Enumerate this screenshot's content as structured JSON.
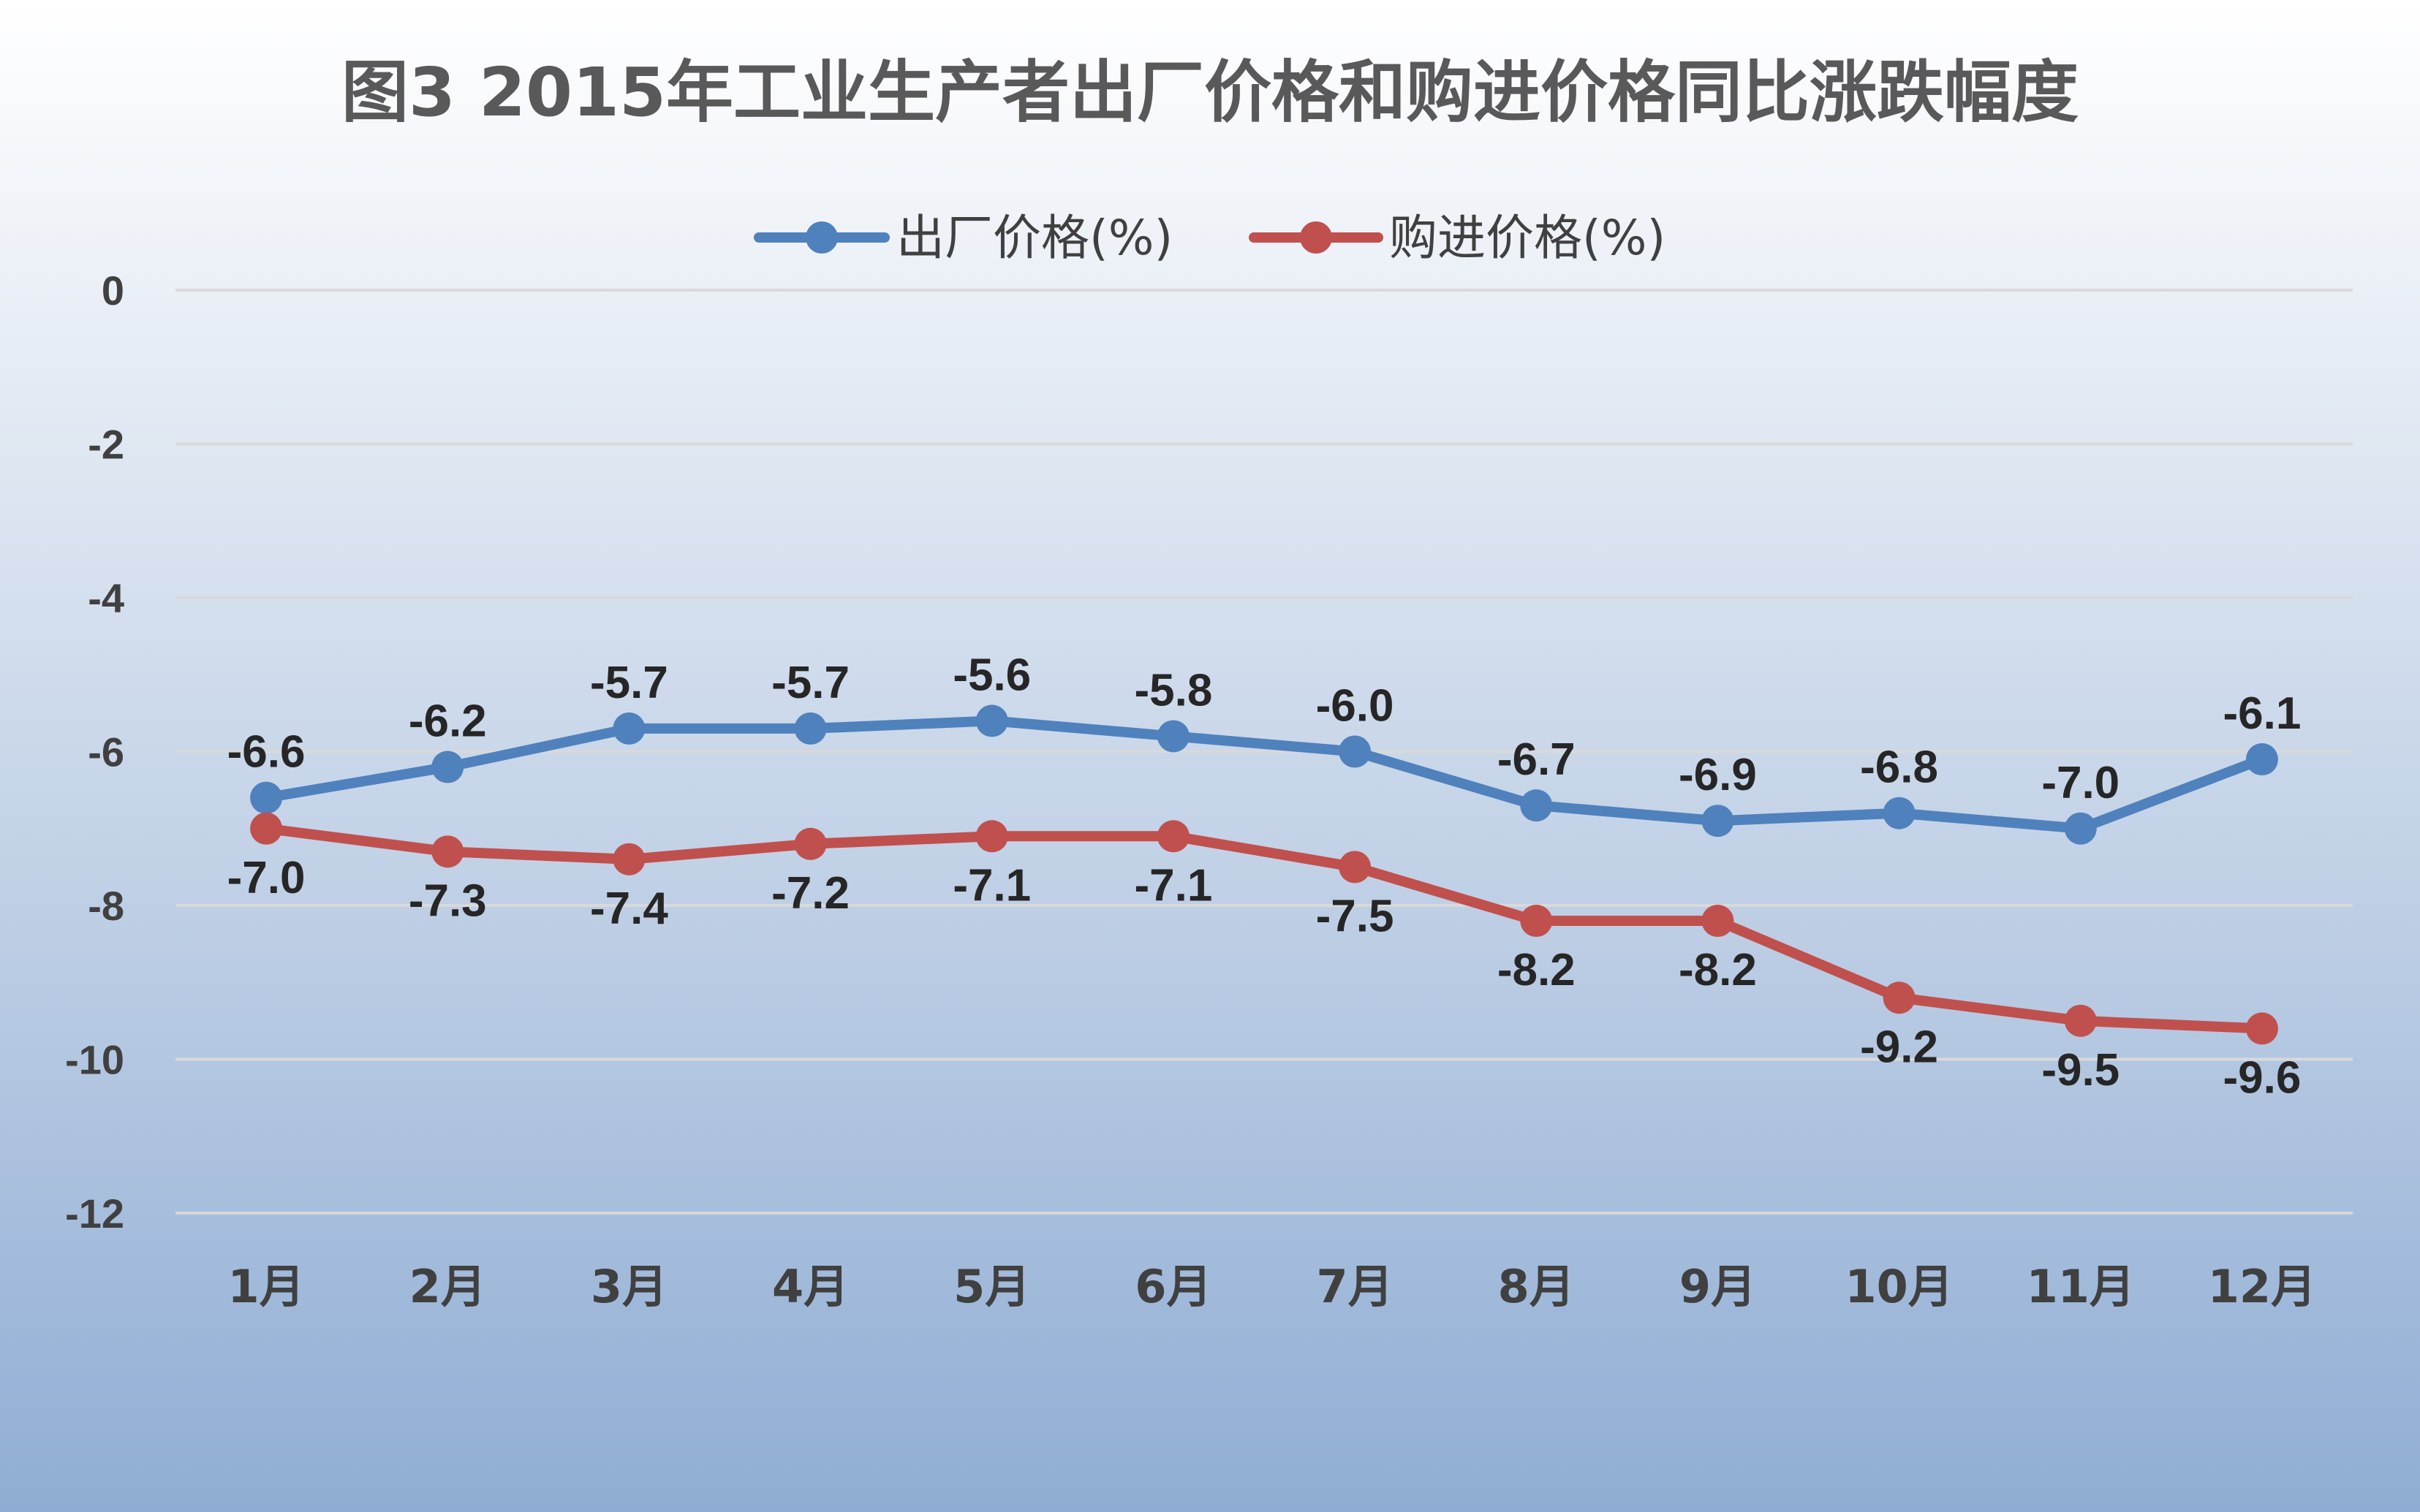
{
  "chart_data": {
    "type": "line",
    "title": "图3  2015年工业生产者出厂价格和购进价格同比涨跌幅度",
    "categories": [
      "1月",
      "2月",
      "3月",
      "4月",
      "5月",
      "6月",
      "7月",
      "8月",
      "9月",
      "10月",
      "11月",
      "12月"
    ],
    "series": [
      {
        "name": "出厂价格(%)",
        "color": "#4f81bd",
        "values": [
          -6.6,
          -6.2,
          -5.7,
          -5.7,
          -5.6,
          -5.8,
          -6.0,
          -6.7,
          -6.9,
          -6.8,
          -7.0,
          -6.1
        ],
        "labels": [
          "-6.6",
          "-6.2",
          "-5.7",
          "-5.7",
          "-5.6",
          "-5.8",
          "-6.0",
          "-6.7",
          "-6.9",
          "-6.8",
          "-7.0",
          "-6.1"
        ],
        "label_position": "above"
      },
      {
        "name": "购进价格(%)",
        "color": "#c0504d",
        "values": [
          -7.0,
          -7.3,
          -7.4,
          -7.2,
          -7.1,
          -7.1,
          -7.5,
          -8.2,
          -8.2,
          -9.2,
          -9.5,
          -9.6
        ],
        "labels": [
          "-7.0",
          "-7.3",
          "-7.4",
          "-7.2",
          "-7.1",
          "-7.1",
          "-7.5",
          "-8.2",
          "-8.2",
          "-9.2",
          "-9.5",
          "-9.6"
        ],
        "label_position": "below"
      }
    ],
    "yticks": [
      0,
      -2,
      -4,
      -6,
      -8,
      -10,
      -12
    ],
    "ytick_labels": [
      "0",
      "-2",
      "-4",
      "-6",
      "-8",
      "-10",
      "-12"
    ],
    "ylim": [
      -12,
      0
    ],
    "xlabel": "",
    "ylabel": "",
    "grid": true,
    "legend_position": "top"
  }
}
